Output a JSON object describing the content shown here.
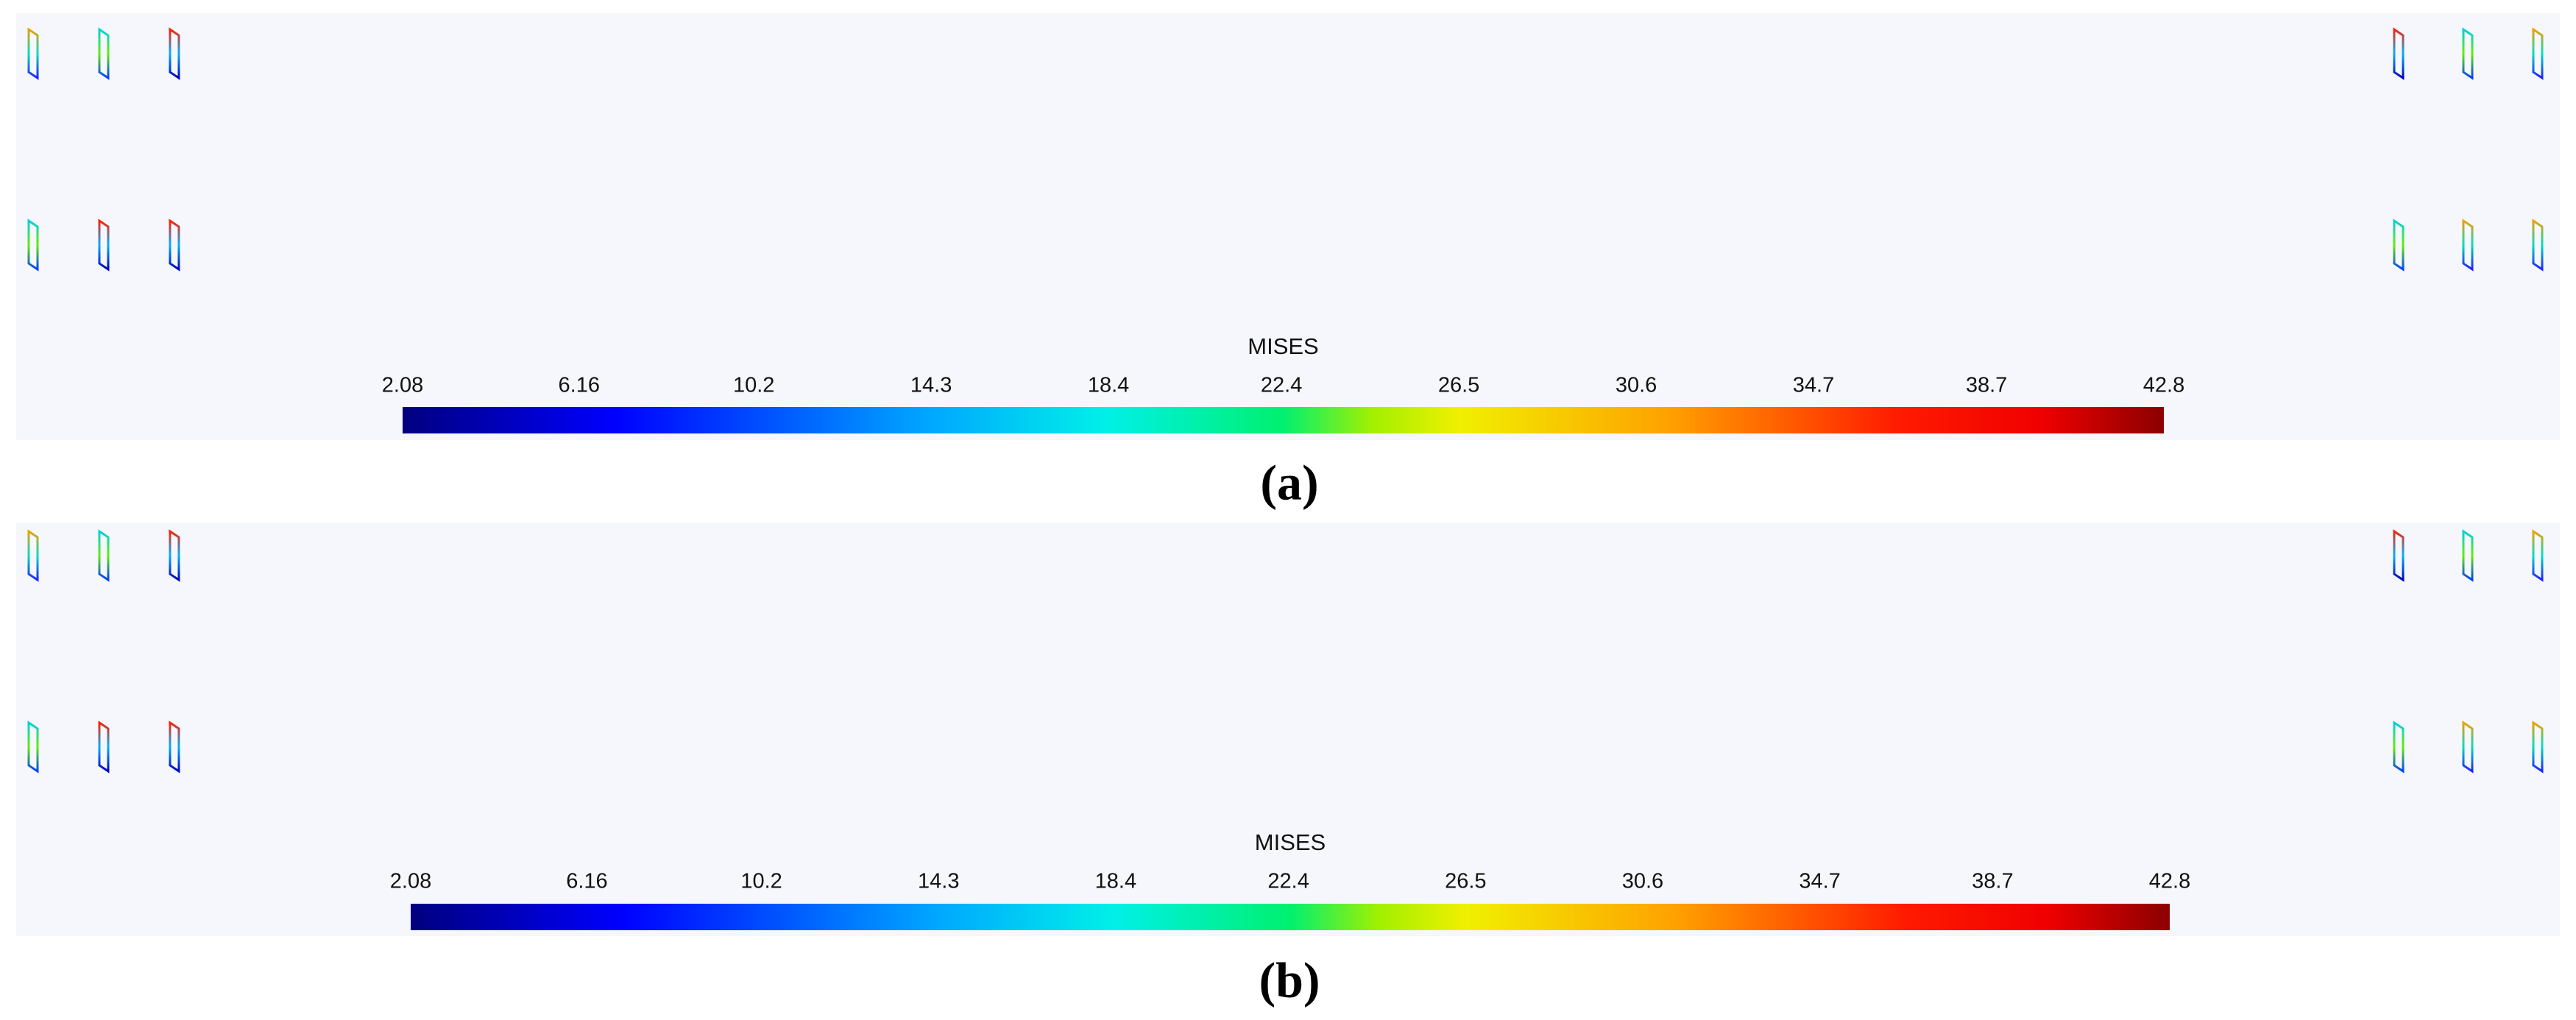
{
  "panels": [
    {
      "colorbar": {
        "title": "MISES",
        "ticks": [
          2.08,
          6.16,
          10.2,
          14.3,
          18.4,
          22.4,
          26.5,
          30.6,
          34.7,
          38.7,
          42.8
        ]
      },
      "label": "(a)"
    },
    {
      "colorbar": {
        "title": "MISES",
        "ticks": [
          2.08,
          6.16,
          10.2,
          14.3,
          18.4,
          22.4,
          26.5,
          30.6,
          34.7,
          38.7,
          42.8
        ]
      },
      "label": "(b)"
    }
  ]
}
